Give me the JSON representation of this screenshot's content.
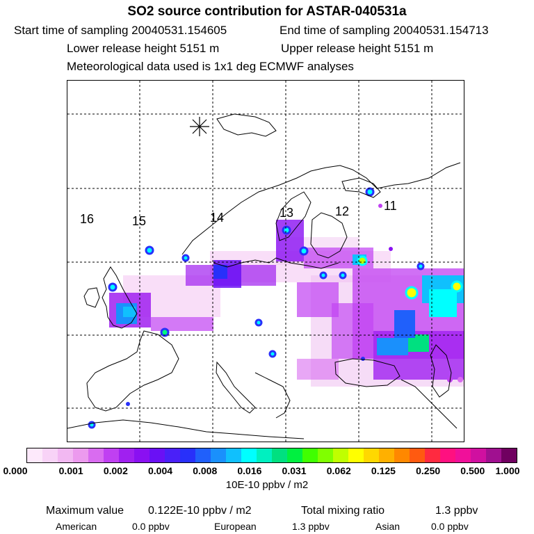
{
  "title": "SO2 source contribution for ASTAR-040531a",
  "sampling": {
    "start": "Start time of sampling 20040531.154605",
    "end": "End time of sampling 20040531.154713"
  },
  "release": {
    "lower": "Lower release height 5151 m",
    "upper": "Upper release height 5151 m"
  },
  "meteo": "Meteorological data used is 1x1 deg ECMWF analyses",
  "map": {
    "day_labels": [
      "16",
      "15",
      "14",
      "13",
      "12",
      "11"
    ],
    "receptor_icon": "asterisk-receptor-icon",
    "land_color": "#ffffff",
    "coast_color": "#000000",
    "grid_color": "#000000"
  },
  "colorbar": {
    "colors": [
      "#fde9fb",
      "#f8d3f7",
      "#f2b8f2",
      "#ec9aee",
      "#d96cf0",
      "#c040f2",
      "#a020f0",
      "#8a10f2",
      "#6a10f5",
      "#4a20f8",
      "#2830fa",
      "#2060fb",
      "#1a90fc",
      "#10c0fd",
      "#00ffff",
      "#00f0c0",
      "#00e080",
      "#00f040",
      "#40ff00",
      "#80ff00",
      "#c0ff00",
      "#ffff00",
      "#ffd800",
      "#ffb000",
      "#ff8800",
      "#ff5a10",
      "#ff2a40",
      "#ff1080",
      "#f0109a",
      "#d010a0",
      "#a01090",
      "#700060"
    ],
    "ticks": [
      "0.000",
      "0.001",
      "0.002",
      "0.004",
      "0.008",
      "0.016",
      "0.031",
      "0.062",
      "0.125",
      "0.250",
      "0.500",
      "1.000"
    ],
    "unit": "10E-10 ppbv / m2"
  },
  "summary": {
    "max_label": "Maximum value",
    "max_value": "0.122E-10 ppbv / m2",
    "total_label": "Total mixing ratio",
    "total_value": "1.3 ppbv",
    "american_label": "American",
    "american_value": "0.0 ppbv",
    "european_label": "European",
    "european_value": "1.3 ppbv",
    "asian_label": "Asian",
    "asian_value": "0.0 ppbv"
  }
}
